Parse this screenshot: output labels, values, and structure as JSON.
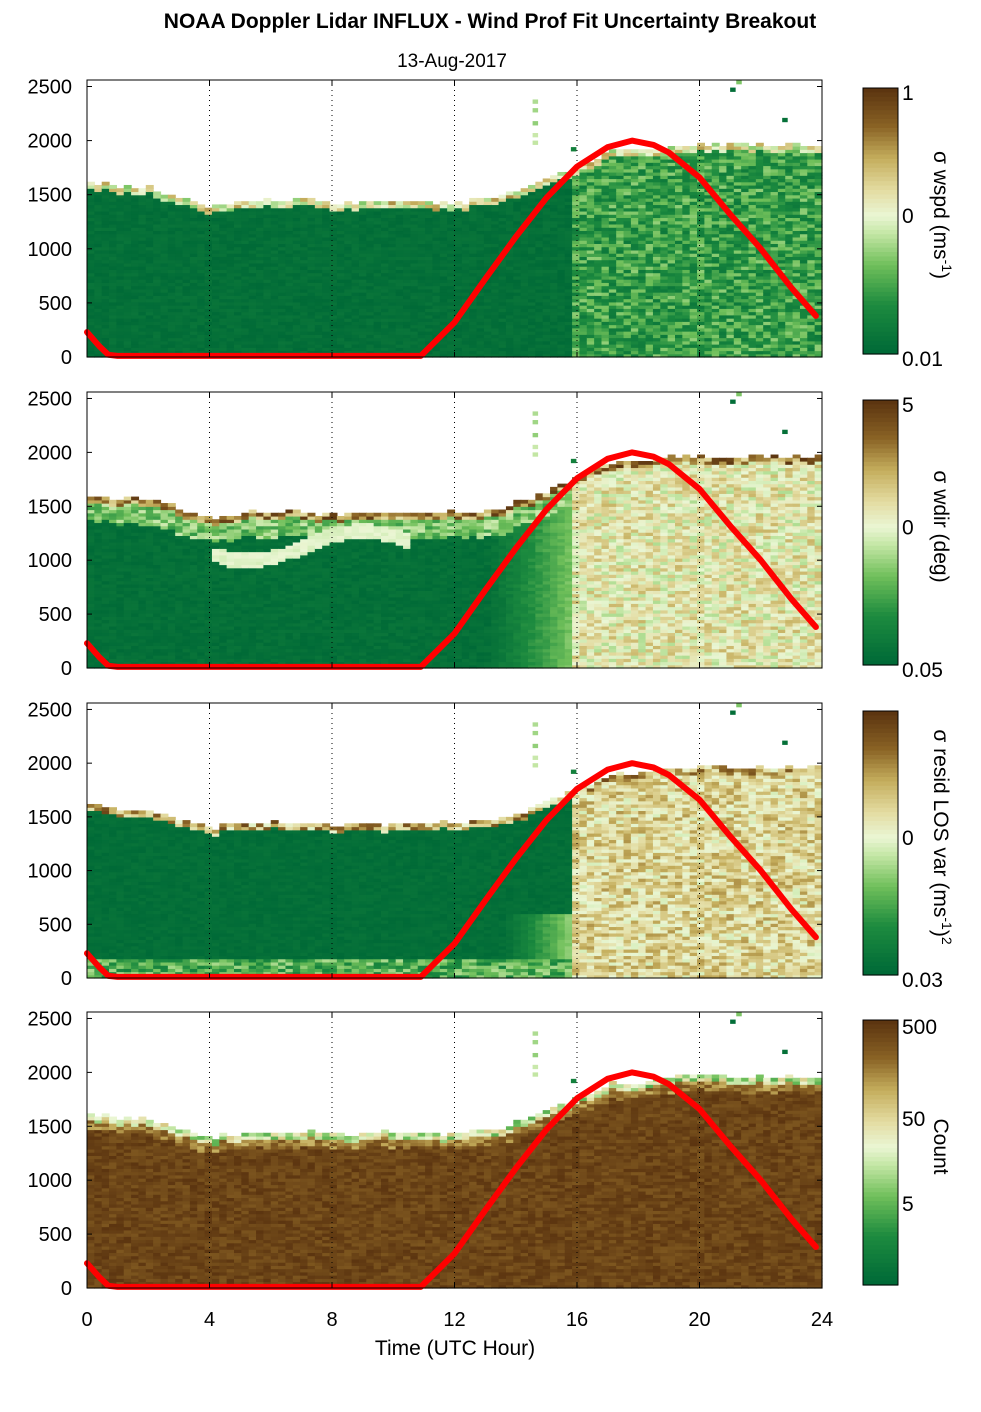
{
  "title": "NOAA Doppler Lidar INFLUX - Wind Prof Fit Uncertainty Breakout",
  "subtitle": "13-Aug-2017",
  "colors": {
    "scale_low": "#006a37",
    "scale_mid": "#e9f6d2",
    "scale_high": "#5c3510",
    "sun_curve": "#ff0000",
    "grid": "#000000"
  },
  "chart_data": [
    {
      "type": "heatmap",
      "panel": 1,
      "xlabel": "",
      "ylabel": "",
      "xlim": [
        0,
        24
      ],
      "ylim": [
        0,
        2500
      ],
      "xticks": [
        "0",
        "4",
        "8",
        "12",
        "16",
        "20",
        "24"
      ],
      "yticks": [
        "0",
        "500",
        "1000",
        "1500",
        "2000",
        "2500"
      ],
      "grid": "vertical dotted at 4, 8, 12, 16, 20, 24 h",
      "colorbar": {
        "label": "σ wspd (ms⁻¹)",
        "ticks": [
          "1",
          "0",
          "0.01"
        ],
        "scale": "log"
      },
      "data_top_height": {
        "x": [
          0,
          1,
          2,
          3,
          4,
          5,
          6,
          7,
          8,
          9,
          10,
          11,
          12,
          13,
          14,
          15,
          16,
          17,
          18,
          19,
          20,
          21,
          22,
          23.8
        ],
        "y": [
          1600,
          1560,
          1550,
          1450,
          1380,
          1430,
          1430,
          1430,
          1420,
          1420,
          1430,
          1430,
          1420,
          1440,
          1520,
          1650,
          1760,
          1880,
          1900,
          1950,
          1960,
          1940,
          1950,
          1950
        ]
      },
      "description_regime": "uniform low values (dark green) before ~15.8 h; mixed medium values (green/light) after"
    },
    {
      "type": "heatmap",
      "panel": 2,
      "xlabel": "",
      "ylabel": "",
      "xlim": [
        0,
        24
      ],
      "ylim": [
        0,
        2500
      ],
      "xticks": [
        "0",
        "4",
        "8",
        "12",
        "16",
        "20",
        "24"
      ],
      "yticks": [
        "0",
        "500",
        "1000",
        "1500",
        "2000",
        "2500"
      ],
      "grid": "vertical dotted at 4, 8, 12, 16, 20, 24 h",
      "colorbar": {
        "label": "σ wdir (deg)",
        "ticks": [
          "5",
          "0",
          "0.05"
        ],
        "scale": "log"
      },
      "data_top_height": {
        "x": [
          0,
          1,
          2,
          3,
          4,
          5,
          6,
          7,
          8,
          9,
          10,
          11,
          12,
          13,
          14,
          15,
          16,
          17,
          18,
          19,
          20,
          21,
          22,
          23.8
        ],
        "y": [
          1600,
          1560,
          1550,
          1450,
          1380,
          1430,
          1430,
          1430,
          1420,
          1420,
          1430,
          1430,
          1420,
          1440,
          1520,
          1650,
          1760,
          1880,
          1900,
          1950,
          1960,
          1940,
          1950,
          1950
        ]
      }
    },
    {
      "type": "heatmap",
      "panel": 3,
      "xlabel": "",
      "ylabel": "",
      "xlim": [
        0,
        24
      ],
      "ylim": [
        0,
        2500
      ],
      "xticks": [
        "0",
        "4",
        "8",
        "12",
        "16",
        "20",
        "24"
      ],
      "yticks": [
        "0",
        "500",
        "1000",
        "1500",
        "2000",
        "2500"
      ],
      "grid": "vertical dotted at 4, 8, 12, 16, 20, 24 h",
      "colorbar": {
        "label": "σ resid LOS var (ms⁻¹)²",
        "ticks": [
          "0",
          "0.03"
        ],
        "scale": "log"
      },
      "data_top_height": {
        "x": [
          0,
          1,
          2,
          3,
          4,
          5,
          6,
          7,
          8,
          9,
          10,
          11,
          12,
          13,
          14,
          15,
          16,
          17,
          18,
          19,
          20,
          21,
          22,
          23.8
        ],
        "y": [
          1600,
          1560,
          1550,
          1450,
          1380,
          1430,
          1430,
          1430,
          1420,
          1420,
          1430,
          1430,
          1420,
          1440,
          1520,
          1650,
          1760,
          1880,
          1900,
          1950,
          1960,
          1940,
          1950,
          1950
        ]
      }
    },
    {
      "type": "heatmap",
      "panel": 4,
      "xlabel": "Time (UTC Hour)",
      "ylabel": "",
      "xlim": [
        0,
        24
      ],
      "ylim": [
        0,
        2500
      ],
      "xticks": [
        "0",
        "4",
        "8",
        "12",
        "16",
        "20",
        "24"
      ],
      "yticks": [
        "0",
        "500",
        "1000",
        "1500",
        "2000",
        "2500"
      ],
      "grid": "vertical dotted at 4, 8, 12, 16, 20, 24 h",
      "colorbar": {
        "label": "Count",
        "ticks": [
          "500",
          "50",
          "5"
        ],
        "scale": "log"
      },
      "data_top_height": {
        "x": [
          0,
          1,
          2,
          3,
          4,
          5,
          6,
          7,
          8,
          9,
          10,
          11,
          12,
          13,
          14,
          15,
          16,
          17,
          18,
          19,
          20,
          21,
          22,
          23.8
        ],
        "y": [
          1600,
          1560,
          1550,
          1450,
          1380,
          1430,
          1430,
          1430,
          1420,
          1420,
          1430,
          1430,
          1420,
          1440,
          1520,
          1650,
          1760,
          1880,
          1900,
          1950,
          1960,
          1940,
          1950,
          1950
        ]
      }
    }
  ],
  "sun_elevation_curve": {
    "description": "red overlay curve in every panel (same on all four)",
    "x": [
      0,
      0.4,
      0.7,
      1,
      4,
      8,
      10.9,
      12,
      13,
      14,
      15,
      16,
      17,
      17.8,
      18.5,
      19,
      20,
      21,
      22,
      23,
      23.8
    ],
    "y": [
      230,
      100,
      20,
      10,
      10,
      10,
      10,
      320,
      720,
      1110,
      1470,
      1760,
      1940,
      2000,
      1960,
      1890,
      1660,
      1320,
      1000,
      640,
      380
    ]
  },
  "panels": [
    {
      "cb_label_plain": "σ wspd (ms",
      "cb_label_sup": "-1",
      "cb_label_end": ")",
      "cb_t1": "1",
      "cb_t2": "0",
      "cb_t3": "0.01"
    },
    {
      "cb_label_plain": "σ wdir (deg)",
      "cb_label_sup": "",
      "cb_label_end": "",
      "cb_t1": "5",
      "cb_t2": "0",
      "cb_t3": "0.05"
    },
    {
      "cb_label_plain": "σ resid LOS var (ms",
      "cb_label_sup": "-1",
      "cb_label_end": ")",
      "cb_label_sup2": "2",
      "cb_t1": "",
      "cb_t2": "0",
      "cb_t3": "0.03"
    },
    {
      "cb_label_plain": "Count",
      "cb_label_sup": "",
      "cb_label_end": "",
      "cb_t1": "500",
      "cb_t2": "50",
      "cb_t3": "5"
    }
  ],
  "axis_ticks_x": [
    "0",
    "4",
    "8",
    "12",
    "16",
    "20",
    "24"
  ],
  "axis_ticks_y": [
    "0",
    "500",
    "1000",
    "1500",
    "2000",
    "2500"
  ],
  "xlabel": "Time (UTC Hour)"
}
